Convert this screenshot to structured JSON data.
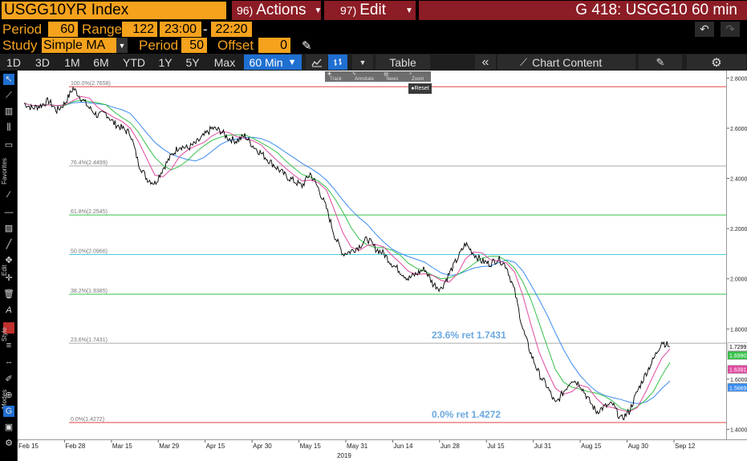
{
  "header": {
    "ticker": "USGG10YR Index",
    "actions": {
      "key": "96)",
      "label": "Actions"
    },
    "edit": {
      "key": "97)",
      "label": "Edit"
    },
    "right_title": "G 418: USGG10 60 min"
  },
  "params": {
    "period_label": "Period",
    "period_value": "60",
    "range_label": "Range",
    "range_value": "122",
    "time_start": "23:00",
    "time_sep": "-",
    "time_end": "22:20",
    "study_label": "Study",
    "study_value": "Simple MA",
    "period2_label": "Period",
    "period2_value": "50",
    "offset_label": "Offset",
    "offset_value": "0"
  },
  "range_bar": {
    "buttons": [
      "1D",
      "3D",
      "1M",
      "6M",
      "YTD",
      "1Y",
      "5Y",
      "Max"
    ],
    "interval": "60 Min",
    "table_label": "Table",
    "chart_content_label": "Chart Content"
  },
  "mini_toolbar": {
    "track": "Track",
    "annotate": "Annotate",
    "news": "News",
    "zoom": "Zoom",
    "reset": "Reset"
  },
  "left_labels": {
    "favorites": "Favorites",
    "edit": "Edit",
    "style": "Style",
    "modes": "Modes"
  },
  "colors": {
    "orange": "#f5a21d",
    "maroon": "#8c1c25",
    "blue_select": "#1f6fd1",
    "ma_fast": "#e04aa0",
    "ma_mid": "#36c24a",
    "ma_slow": "#3a8cf0"
  },
  "chart_data": {
    "type": "line",
    "ylim": [
      1.36,
      2.83
    ],
    "y_ticks": [
      "2.8000",
      "2.6000",
      "2.4000",
      "2.2000",
      "2.0000",
      "1.8000",
      "1.6000",
      "1.4000"
    ],
    "y_tick_values": [
      2.8,
      2.6,
      2.4,
      2.2,
      2.0,
      1.8,
      1.6,
      1.4
    ],
    "x_ticks": [
      "Feb 15",
      "Feb 28",
      "Mar 15",
      "Mar 29",
      "Apr 15",
      "Apr 30",
      "May 15",
      "May 31",
      "Jun 14",
      "Jun 28",
      "Jul 15",
      "Jul 31",
      "Aug 15",
      "Aug 30",
      "Sep 12"
    ],
    "x_year_label": "2019",
    "fib_levels": [
      {
        "label": "100.0%(2.7658)",
        "value": 2.7658,
        "color": "#e04040"
      },
      {
        "label": "76.4%(2.4499)",
        "value": 2.4499,
        "color": "#aaaaaa"
      },
      {
        "label": "61.8%(2.2545)",
        "value": 2.2545,
        "color": "#36c24a"
      },
      {
        "label": "50.0%(2.0966)",
        "value": 2.0966,
        "color": "#48cde0"
      },
      {
        "label": "38.2%(1.9385)",
        "value": 1.9385,
        "color": "#36c24a"
      },
      {
        "label": "23.6%(1.7431)",
        "value": 1.7431,
        "color": "#aaaaaa"
      },
      {
        "label": "0.0%(1.4272)",
        "value": 1.4272,
        "color": "#e04040"
      }
    ],
    "annotations": [
      {
        "text": "23.6% ret 1.7431",
        "value": 1.7431
      },
      {
        "text": "0.0% ret 1.4272",
        "value": 1.4272
      }
    ],
    "price_series": [
      2.7,
      2.68,
      2.69,
      2.71,
      2.67,
      2.7,
      2.76,
      2.72,
      2.68,
      2.65,
      2.66,
      2.62,
      2.6,
      2.58,
      2.46,
      2.4,
      2.38,
      2.44,
      2.49,
      2.53,
      2.52,
      2.54,
      2.57,
      2.6,
      2.59,
      2.56,
      2.55,
      2.57,
      2.53,
      2.5,
      2.47,
      2.44,
      2.41,
      2.39,
      2.37,
      2.42,
      2.36,
      2.28,
      2.17,
      2.1,
      2.11,
      2.13,
      2.16,
      2.12,
      2.1,
      2.06,
      2.03,
      2.0,
      2.02,
      2.04,
      1.98,
      1.96,
      2.02,
      2.08,
      2.14,
      2.1,
      2.07,
      2.06,
      2.08,
      2.05,
      1.95,
      1.8,
      1.7,
      1.62,
      1.57,
      1.5,
      1.55,
      1.6,
      1.58,
      1.52,
      1.47,
      1.49,
      1.5,
      1.44,
      1.47,
      1.55,
      1.62,
      1.68,
      1.75,
      1.73
    ],
    "price_color": "#000000",
    "last_values": [
      {
        "label": "1.7299",
        "value": 1.7299,
        "color": "#ffffff",
        "text_color": "#000000"
      },
      {
        "label": "1.6990",
        "value": 1.699,
        "color": "#36c24a",
        "text_color": "#ffffff"
      },
      {
        "label": "1.6391",
        "value": 1.6391,
        "color": "#e04aa0",
        "text_color": "#ffffff"
      },
      {
        "label": "1.5669",
        "value": 1.5669,
        "color": "#3a8cf0",
        "text_color": "#ffffff"
      }
    ]
  }
}
